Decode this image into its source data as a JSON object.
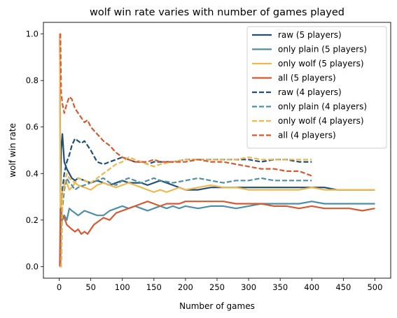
{
  "chart_data": {
    "type": "line",
    "title": "wolf win rate varies with number of games played",
    "xlabel": "Number of games",
    "ylabel": "wolf win rate",
    "xlim": [
      -25,
      525
    ],
    "ylim": [
      -0.05,
      1.05
    ],
    "xticks": [
      0,
      50,
      100,
      150,
      200,
      250,
      300,
      350,
      400,
      450,
      500
    ],
    "yticks": [
      0.0,
      0.2,
      0.4,
      0.6,
      0.8,
      1.0
    ],
    "xtick_labels": [
      "0",
      "50",
      "100",
      "150",
      "200",
      "250",
      "300",
      "350",
      "400",
      "450",
      "500"
    ],
    "ytick_labels": [
      "0.0",
      "0.2",
      "0.4",
      "0.6",
      "0.8",
      "1.0"
    ],
    "grid": false,
    "legend_position": "top-right",
    "series": [
      {
        "name": "raw (5 players)",
        "color": "#1f4e79",
        "dash": false,
        "x": [
          1,
          2,
          3,
          5,
          8,
          12,
          16,
          20,
          25,
          30,
          40,
          50,
          60,
          70,
          80,
          90,
          100,
          110,
          120,
          130,
          140,
          150,
          160,
          170,
          180,
          190,
          200,
          220,
          240,
          260,
          280,
          300,
          320,
          340,
          360,
          380,
          400,
          420,
          440,
          460,
          480,
          500
        ],
        "y": [
          1.0,
          0.33,
          0.5,
          0.57,
          0.45,
          0.42,
          0.4,
          0.38,
          0.37,
          0.38,
          0.37,
          0.36,
          0.37,
          0.36,
          0.35,
          0.36,
          0.37,
          0.36,
          0.36,
          0.36,
          0.35,
          0.36,
          0.37,
          0.36,
          0.35,
          0.34,
          0.33,
          0.33,
          0.34,
          0.34,
          0.34,
          0.34,
          0.34,
          0.34,
          0.34,
          0.34,
          0.34,
          0.34,
          0.33,
          0.33,
          0.33,
          0.33
        ]
      },
      {
        "name": "only plain (5 players)",
        "color": "#4e8fa8",
        "dash": false,
        "x": [
          1,
          2,
          3,
          5,
          8,
          12,
          16,
          20,
          25,
          30,
          40,
          50,
          60,
          70,
          80,
          90,
          100,
          110,
          120,
          130,
          140,
          150,
          160,
          170,
          180,
          190,
          200,
          220,
          240,
          260,
          280,
          300,
          320,
          340,
          360,
          380,
          400,
          420,
          440,
          460,
          480,
          500
        ],
        "y": [
          0.0,
          0.0,
          0.25,
          0.2,
          0.22,
          0.2,
          0.25,
          0.24,
          0.23,
          0.22,
          0.24,
          0.23,
          0.22,
          0.22,
          0.24,
          0.25,
          0.26,
          0.25,
          0.26,
          0.25,
          0.24,
          0.25,
          0.26,
          0.25,
          0.26,
          0.25,
          0.26,
          0.25,
          0.26,
          0.26,
          0.25,
          0.26,
          0.27,
          0.27,
          0.27,
          0.27,
          0.28,
          0.27,
          0.27,
          0.27,
          0.27,
          0.27
        ]
      },
      {
        "name": "only wolf (5 players)",
        "color": "#efb84f",
        "dash": false,
        "x": [
          1,
          2,
          3,
          5,
          8,
          12,
          16,
          20,
          25,
          30,
          40,
          50,
          60,
          70,
          80,
          90,
          100,
          110,
          120,
          130,
          140,
          150,
          160,
          170,
          180,
          190,
          200,
          220,
          240,
          260,
          280,
          300,
          320,
          340,
          360,
          380,
          400,
          420,
          440,
          460,
          480,
          500
        ],
        "y": [
          1.0,
          0.2,
          0.25,
          0.33,
          0.35,
          0.36,
          0.33,
          0.34,
          0.36,
          0.35,
          0.34,
          0.33,
          0.35,
          0.36,
          0.35,
          0.34,
          0.35,
          0.36,
          0.35,
          0.34,
          0.33,
          0.32,
          0.33,
          0.32,
          0.33,
          0.34,
          0.33,
          0.34,
          0.35,
          0.34,
          0.34,
          0.33,
          0.33,
          0.33,
          0.33,
          0.33,
          0.34,
          0.33,
          0.33,
          0.33,
          0.33,
          0.33
        ]
      },
      {
        "name": "all (5 players)",
        "color": "#d65a31",
        "dash": false,
        "x": [
          1,
          2,
          3,
          5,
          8,
          12,
          16,
          20,
          25,
          30,
          35,
          40,
          45,
          50,
          55,
          60,
          70,
          80,
          90,
          100,
          110,
          120,
          130,
          140,
          150,
          160,
          170,
          180,
          190,
          200,
          220,
          240,
          260,
          280,
          300,
          320,
          340,
          360,
          380,
          400,
          420,
          440,
          460,
          480,
          500
        ],
        "y": [
          0.0,
          0.25,
          0.2,
          0.22,
          0.21,
          0.18,
          0.17,
          0.16,
          0.15,
          0.16,
          0.14,
          0.15,
          0.14,
          0.16,
          0.18,
          0.19,
          0.21,
          0.2,
          0.23,
          0.24,
          0.25,
          0.26,
          0.27,
          0.28,
          0.27,
          0.26,
          0.27,
          0.27,
          0.27,
          0.28,
          0.28,
          0.28,
          0.28,
          0.27,
          0.27,
          0.27,
          0.26,
          0.26,
          0.25,
          0.26,
          0.25,
          0.25,
          0.25,
          0.24,
          0.25
        ]
      },
      {
        "name": "raw (4 players)",
        "color": "#1f4e79",
        "dash": true,
        "x": [
          1,
          2,
          3,
          5,
          8,
          12,
          16,
          20,
          25,
          30,
          35,
          40,
          50,
          60,
          70,
          80,
          90,
          100,
          110,
          120,
          130,
          140,
          150,
          160,
          180,
          200,
          220,
          240,
          260,
          280,
          300,
          320,
          340,
          360,
          380,
          400
        ],
        "y": [
          0.0,
          0.0,
          0.0,
          0.33,
          0.4,
          0.45,
          0.48,
          0.52,
          0.55,
          0.54,
          0.53,
          0.54,
          0.5,
          0.45,
          0.44,
          0.45,
          0.46,
          0.47,
          0.46,
          0.45,
          0.45,
          0.44,
          0.45,
          0.45,
          0.45,
          0.46,
          0.46,
          0.46,
          0.46,
          0.46,
          0.46,
          0.45,
          0.46,
          0.46,
          0.45,
          0.45
        ]
      },
      {
        "name": "only plain (4 players)",
        "color": "#4e8fa8",
        "dash": true,
        "x": [
          1,
          2,
          3,
          5,
          8,
          12,
          16,
          20,
          25,
          30,
          40,
          50,
          60,
          70,
          80,
          90,
          100,
          110,
          120,
          130,
          140,
          150,
          160,
          180,
          200,
          220,
          240,
          260,
          280,
          300,
          320,
          340,
          360,
          380,
          400
        ],
        "y": [
          0.0,
          0.0,
          0.0,
          0.25,
          0.33,
          0.38,
          0.36,
          0.35,
          0.33,
          0.34,
          0.35,
          0.36,
          0.37,
          0.38,
          0.36,
          0.35,
          0.37,
          0.38,
          0.37,
          0.36,
          0.37,
          0.38,
          0.37,
          0.36,
          0.37,
          0.38,
          0.37,
          0.36,
          0.37,
          0.37,
          0.38,
          0.37,
          0.37,
          0.37,
          0.37
        ]
      },
      {
        "name": "only wolf (4 players)",
        "color": "#efb84f",
        "dash": true,
        "x": [
          1,
          2,
          3,
          5,
          8,
          12,
          16,
          20,
          25,
          30,
          40,
          50,
          60,
          70,
          80,
          90,
          100,
          110,
          120,
          130,
          140,
          150,
          160,
          180,
          200,
          220,
          240,
          260,
          280,
          300,
          320,
          340,
          360,
          380,
          400
        ],
        "y": [
          0.0,
          0.0,
          0.0,
          0.3,
          0.35,
          0.4,
          0.38,
          0.37,
          0.36,
          0.38,
          0.37,
          0.36,
          0.38,
          0.4,
          0.42,
          0.44,
          0.45,
          0.47,
          0.46,
          0.45,
          0.44,
          0.43,
          0.44,
          0.45,
          0.46,
          0.46,
          0.46,
          0.46,
          0.46,
          0.47,
          0.46,
          0.46,
          0.46,
          0.46,
          0.46
        ]
      },
      {
        "name": "all (4 players)",
        "color": "#d65a31",
        "dash": true,
        "x": [
          1,
          2,
          3,
          5,
          8,
          12,
          16,
          20,
          25,
          30,
          35,
          40,
          45,
          50,
          60,
          70,
          80,
          90,
          100,
          110,
          120,
          130,
          140,
          150,
          160,
          180,
          200,
          220,
          240,
          260,
          280,
          300,
          320,
          340,
          360,
          380,
          400
        ],
        "y": [
          1.0,
          1.0,
          0.75,
          0.7,
          0.66,
          0.7,
          0.73,
          0.72,
          0.68,
          0.66,
          0.64,
          0.62,
          0.63,
          0.6,
          0.57,
          0.54,
          0.52,
          0.49,
          0.47,
          0.46,
          0.45,
          0.45,
          0.45,
          0.46,
          0.45,
          0.45,
          0.45,
          0.46,
          0.45,
          0.45,
          0.44,
          0.43,
          0.42,
          0.42,
          0.41,
          0.41,
          0.39
        ]
      }
    ]
  }
}
